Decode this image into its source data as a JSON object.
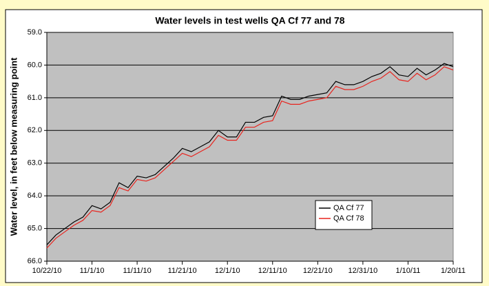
{
  "chart_data": {
    "type": "line",
    "title": "Water levels in test wells QA Cf 77 and 78",
    "y_label": "Water level, in feet below measuring point",
    "x": [
      "10/22/10",
      "10/24/10",
      "10/26/10",
      "10/28/10",
      "10/30/10",
      "11/1/10",
      "11/3/10",
      "11/5/10",
      "11/7/10",
      "11/9/10",
      "11/11/10",
      "11/13/10",
      "11/15/10",
      "11/17/10",
      "11/19/10",
      "11/21/10",
      "11/23/10",
      "11/25/10",
      "11/27/10",
      "11/29/10",
      "12/1/10",
      "12/3/10",
      "12/5/10",
      "12/7/10",
      "12/9/10",
      "12/11/10",
      "12/13/10",
      "12/15/10",
      "12/17/10",
      "12/19/10",
      "12/21/10",
      "12/23/10",
      "12/25/10",
      "12/27/10",
      "12/29/10",
      "12/31/10",
      "1/2/11",
      "1/4/11",
      "1/6/11",
      "1/8/11",
      "1/10/11",
      "1/12/11",
      "1/14/11",
      "1/16/11",
      "1/18/11",
      "1/20/11"
    ],
    "series": [
      {
        "name": "QA Cf 77",
        "color": "#000000",
        "values": [
          65.5,
          65.2,
          65.0,
          64.8,
          64.65,
          64.3,
          64.4,
          64.2,
          63.6,
          63.75,
          63.4,
          63.45,
          63.35,
          63.1,
          62.85,
          62.55,
          62.65,
          62.5,
          62.35,
          62.0,
          62.2,
          62.2,
          61.75,
          61.75,
          61.6,
          61.55,
          60.95,
          61.05,
          61.05,
          60.95,
          60.9,
          60.85,
          60.5,
          60.6,
          60.6,
          60.5,
          60.35,
          60.25,
          60.05,
          60.3,
          60.35,
          60.1,
          60.3,
          60.15,
          59.95,
          60.05
        ]
      },
      {
        "name": "QA Cf 78",
        "color": "#e8231d",
        "values": [
          65.6,
          65.3,
          65.1,
          64.9,
          64.75,
          64.45,
          64.5,
          64.3,
          63.75,
          63.85,
          63.5,
          63.55,
          63.45,
          63.2,
          62.95,
          62.7,
          62.8,
          62.65,
          62.5,
          62.15,
          62.3,
          62.3,
          61.9,
          61.9,
          61.75,
          61.7,
          61.1,
          61.2,
          61.2,
          61.1,
          61.05,
          61.0,
          60.65,
          60.75,
          60.75,
          60.65,
          60.5,
          60.4,
          60.2,
          60.45,
          60.5,
          60.25,
          60.45,
          60.3,
          60.05,
          60.15
        ]
      }
    ],
    "xlim": [
      "10/22/10",
      "1/20/11"
    ],
    "xticks": [
      "10/22/10",
      "11/1/10",
      "11/11/10",
      "11/21/10",
      "12/1/10",
      "12/11/10",
      "12/21/10",
      "12/31/10",
      "1/10/11",
      "1/20/11"
    ],
    "ylim": [
      59,
      66
    ],
    "y_inverted": true,
    "yticks": [
      {
        "value": 59,
        "label": "59.0"
      },
      {
        "value": 60,
        "label": "60.0"
      },
      {
        "value": 61,
        "label": "61.0"
      },
      {
        "value": 62,
        "label": "62.0"
      },
      {
        "value": 63,
        "label": "63.0"
      },
      {
        "value": 64,
        "label": "64.0"
      },
      {
        "value": 65,
        "label": "65.0"
      },
      {
        "value": 66,
        "label": "66.0"
      }
    ],
    "grid": true,
    "legend": "lower right"
  }
}
